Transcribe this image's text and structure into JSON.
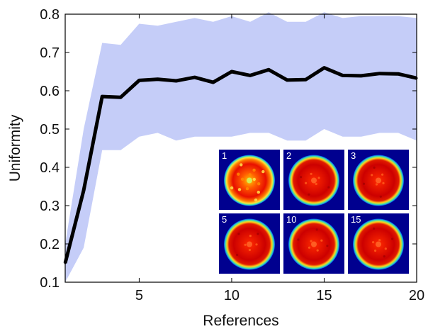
{
  "chart_data": {
    "type": "line",
    "title": "",
    "xlabel": "References",
    "ylabel": "Uniformity",
    "xlim": [
      1,
      20
    ],
    "ylim": [
      0.1,
      0.8
    ],
    "xticks": [
      "5",
      "10",
      "15",
      "20"
    ],
    "yticks": [
      "0.1",
      "0.2",
      "0.3",
      "0.4",
      "0.5",
      "0.6",
      "0.7",
      "0.8"
    ],
    "grid": false,
    "legend": "none",
    "x": [
      1,
      2,
      3,
      4,
      5,
      6,
      7,
      8,
      9,
      10,
      11,
      12,
      13,
      14,
      15,
      16,
      17,
      18,
      19,
      20
    ],
    "series": [
      {
        "values": [
          0.15,
          0.34,
          0.585,
          0.583,
          0.627,
          0.63,
          0.626,
          0.635,
          0.622,
          0.65,
          0.64,
          0.655,
          0.628,
          0.629,
          0.66,
          0.64,
          0.639,
          0.645,
          0.644,
          0.633
        ],
        "band_lower": [
          0.1,
          0.19,
          0.445,
          0.445,
          0.48,
          0.49,
          0.47,
          0.48,
          0.48,
          0.48,
          0.49,
          0.49,
          0.47,
          0.47,
          0.5,
          0.48,
          0.48,
          0.49,
          0.49,
          0.47
        ],
        "band_upper": [
          0.2,
          0.5,
          0.725,
          0.72,
          0.775,
          0.77,
          0.78,
          0.79,
          0.78,
          0.795,
          0.78,
          0.805,
          0.78,
          0.78,
          0.805,
          0.79,
          0.795,
          0.795,
          0.795,
          0.79
        ]
      }
    ],
    "colors": {
      "line": "#000000",
      "band": "#c5cdf8",
      "inset_bg": "#00008f"
    },
    "inset_panels": [
      {
        "label": "1"
      },
      {
        "label": "2"
      },
      {
        "label": "3"
      },
      {
        "label": "5"
      },
      {
        "label": "10"
      },
      {
        "label": "15"
      }
    ]
  }
}
